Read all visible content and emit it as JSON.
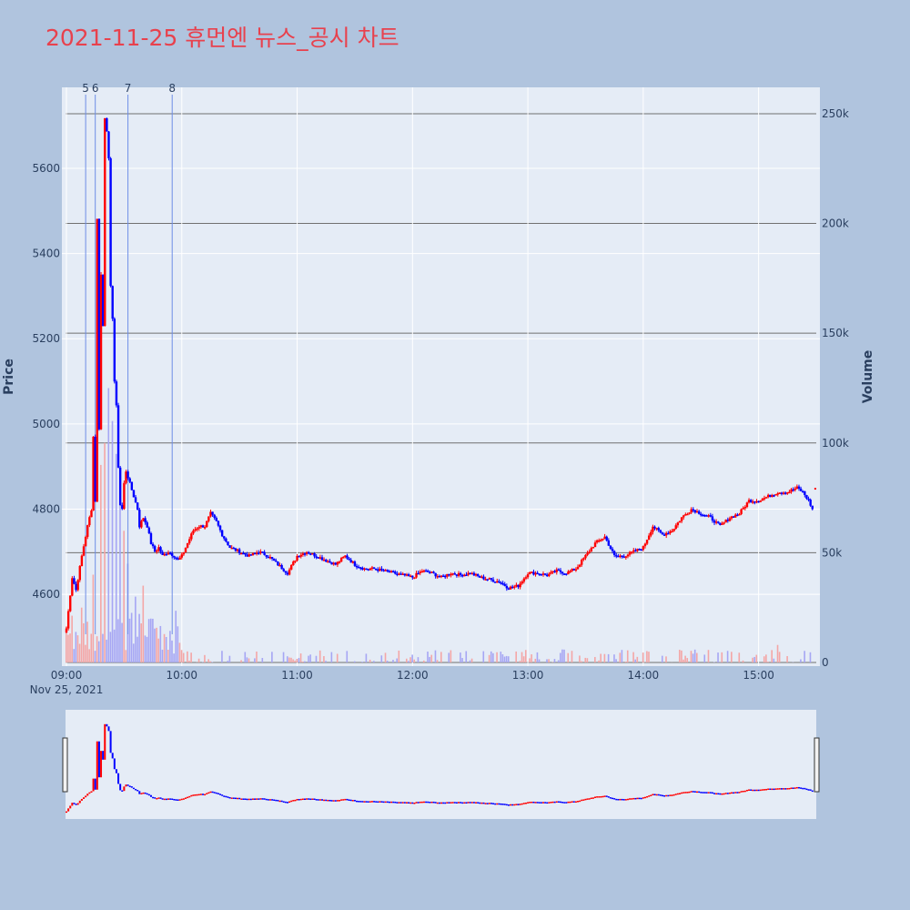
{
  "title": "2021-11-25 휴먼엔 뉴스_공시 차트",
  "colors": {
    "up": "#ff0000",
    "down": "#0000ff",
    "up_volume": "#f4a6a6",
    "down_volume": "#a6a6f4",
    "plot_bg": "#e5ecf6",
    "page_bg": "#b0c4de",
    "title": "#e8414d",
    "news_line": "#6d8de6"
  },
  "chart_data": {
    "type": "candlestick",
    "ylabel": "Price",
    "y2label": "Volume",
    "xlabel": "",
    "ylim": [
      4440,
      5790
    ],
    "y2lim": [
      0,
      262000
    ],
    "y_ticks": [
      4600,
      4800,
      5000,
      5200,
      5400,
      5600
    ],
    "y2_ticks": [
      "0",
      "50k",
      "100k",
      "150k",
      "200k",
      "250k"
    ],
    "y2_tick_values": [
      0,
      50000,
      100000,
      150000,
      200000,
      250000
    ],
    "x_range": [
      "09:00",
      "15:30"
    ],
    "x_ticks": [
      "09:00",
      "10:00",
      "11:00",
      "12:00",
      "13:00",
      "14:00",
      "15:00"
    ],
    "x_date_label": "Nov 25, 2021",
    "news_markers": [
      {
        "label": "5",
        "time": "09:10"
      },
      {
        "label": "6",
        "time": "09:15"
      },
      {
        "label": "7",
        "time": "09:32"
      },
      {
        "label": "8",
        "time": "09:55"
      }
    ],
    "price_path": [
      [
        "09:00",
        4520
      ],
      [
        "09:03",
        4640
      ],
      [
        "09:05",
        4610
      ],
      [
        "09:08",
        4690
      ],
      [
        "09:11",
        4760
      ],
      [
        "09:13",
        4800
      ],
      [
        "09:14",
        4970
      ],
      [
        "09:15",
        4820
      ],
      [
        "09:16",
        5480
      ],
      [
        "09:17",
        4990
      ],
      [
        "09:18",
        5350
      ],
      [
        "09:19",
        5230
      ],
      [
        "09:20",
        5720
      ],
      [
        "09:21",
        5690
      ],
      [
        "09:22",
        5620
      ],
      [
        "09:23",
        5320
      ],
      [
        "09:24",
        5250
      ],
      [
        "09:25",
        5100
      ],
      [
        "09:26",
        5040
      ],
      [
        "09:27",
        4900
      ],
      [
        "09:28",
        4810
      ],
      [
        "09:29",
        4800
      ],
      [
        "09:30",
        4860
      ],
      [
        "09:31",
        4890
      ],
      [
        "09:33",
        4860
      ],
      [
        "09:35",
        4830
      ],
      [
        "09:37",
        4800
      ],
      [
        "09:38",
        4760
      ],
      [
        "09:40",
        4780
      ],
      [
        "09:42",
        4760
      ],
      [
        "09:44",
        4720
      ],
      [
        "09:46",
        4700
      ],
      [
        "09:48",
        4710
      ],
      [
        "09:50",
        4690
      ],
      [
        "09:53",
        4700
      ],
      [
        "09:56",
        4690
      ],
      [
        "09:58",
        4680
      ],
      [
        "10:00",
        4690
      ],
      [
        "10:03",
        4720
      ],
      [
        "10:06",
        4750
      ],
      [
        "10:09",
        4760
      ],
      [
        "10:12",
        4760
      ],
      [
        "10:15",
        4790
      ],
      [
        "10:18",
        4770
      ],
      [
        "10:21",
        4740
      ],
      [
        "10:25",
        4710
      ],
      [
        "10:30",
        4700
      ],
      [
        "10:35",
        4690
      ],
      [
        "10:40",
        4700
      ],
      [
        "10:45",
        4690
      ],
      [
        "10:50",
        4670
      ],
      [
        "10:55",
        4650
      ],
      [
        "11:00",
        4690
      ],
      [
        "11:05",
        4700
      ],
      [
        "11:10",
        4690
      ],
      [
        "11:15",
        4680
      ],
      [
        "11:20",
        4670
      ],
      [
        "11:25",
        4690
      ],
      [
        "11:30",
        4670
      ],
      [
        "11:35",
        4660
      ],
      [
        "11:40",
        4660
      ],
      [
        "11:45",
        4655
      ],
      [
        "11:50",
        4650
      ],
      [
        "11:55",
        4645
      ],
      [
        "12:00",
        4640
      ],
      [
        "12:05",
        4655
      ],
      [
        "12:10",
        4650
      ],
      [
        "12:15",
        4640
      ],
      [
        "12:20",
        4650
      ],
      [
        "12:25",
        4645
      ],
      [
        "12:30",
        4650
      ],
      [
        "12:35",
        4640
      ],
      [
        "12:40",
        4635
      ],
      [
        "12:45",
        4630
      ],
      [
        "12:50",
        4615
      ],
      [
        "12:55",
        4620
      ],
      [
        "13:00",
        4650
      ],
      [
        "13:05",
        4650
      ],
      [
        "13:10",
        4645
      ],
      [
        "13:15",
        4655
      ],
      [
        "13:20",
        4650
      ],
      [
        "13:25",
        4660
      ],
      [
        "13:30",
        4690
      ],
      [
        "13:35",
        4720
      ],
      [
        "13:40",
        4735
      ],
      [
        "13:45",
        4690
      ],
      [
        "13:50",
        4690
      ],
      [
        "13:55",
        4700
      ],
      [
        "14:00",
        4710
      ],
      [
        "14:05",
        4760
      ],
      [
        "14:10",
        4740
      ],
      [
        "14:15",
        4750
      ],
      [
        "14:20",
        4780
      ],
      [
        "14:25",
        4800
      ],
      [
        "14:30",
        4790
      ],
      [
        "14:35",
        4780
      ],
      [
        "14:40",
        4760
      ],
      [
        "14:45",
        4780
      ],
      [
        "14:50",
        4790
      ],
      [
        "14:55",
        4820
      ],
      [
        "15:00",
        4820
      ],
      [
        "15:05",
        4830
      ],
      [
        "15:10",
        4840
      ],
      [
        "15:15",
        4840
      ],
      [
        "15:20",
        4850
      ],
      [
        "15:23",
        4840
      ],
      [
        "15:26",
        4820
      ],
      [
        "15:28",
        4800
      ]
    ],
    "volume_spikes": [
      [
        "09:08",
        25000
      ],
      [
        "09:14",
        40000
      ],
      [
        "09:18",
        90000
      ],
      [
        "09:20",
        100000
      ],
      [
        "09:22",
        125000
      ],
      [
        "09:24",
        110000
      ],
      [
        "09:26",
        95000
      ],
      [
        "09:28",
        80000
      ],
      [
        "09:30",
        60000
      ],
      [
        "09:32",
        45000
      ],
      [
        "09:36",
        30000
      ],
      [
        "09:40",
        35000
      ],
      [
        "09:44",
        20000
      ],
      [
        "09:55",
        10000
      ],
      [
        "15:10",
        8000
      ],
      [
        "15:30",
        10000
      ]
    ]
  }
}
